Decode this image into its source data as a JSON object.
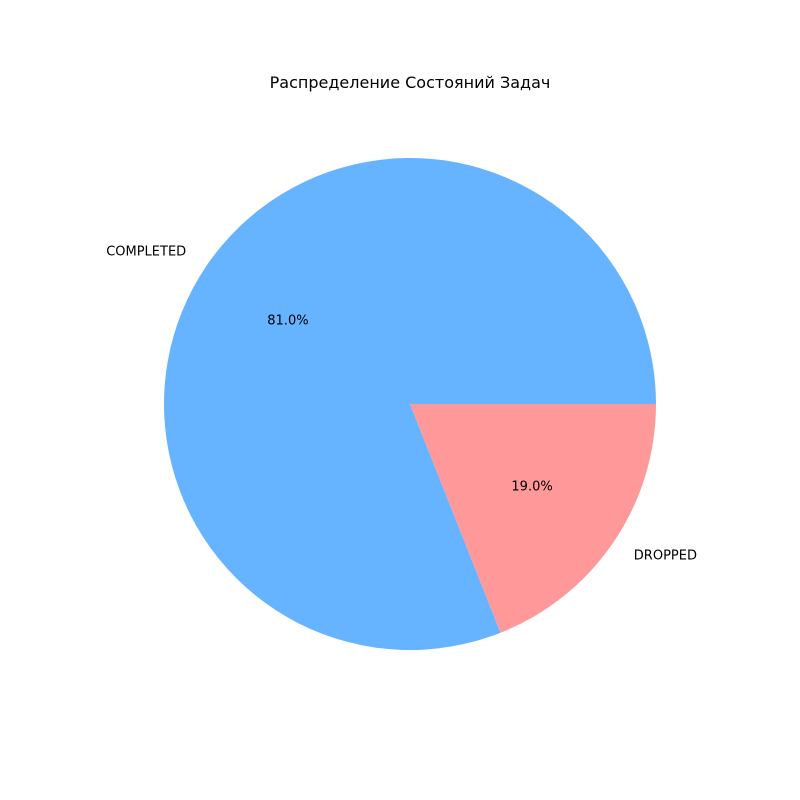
{
  "chart_data": {
    "type": "pie",
    "title": "Распределение Состояний Задач",
    "labels": [
      "COMPLETED",
      "DROPPED"
    ],
    "values": [
      81.0,
      19.0
    ],
    "percent_labels": [
      "81.0%",
      "19.0%"
    ],
    "colors": [
      "#66b3ff",
      "#ff9999"
    ],
    "start_angle_deg": 0,
    "direction": "counterclockwise",
    "legend": "none"
  }
}
